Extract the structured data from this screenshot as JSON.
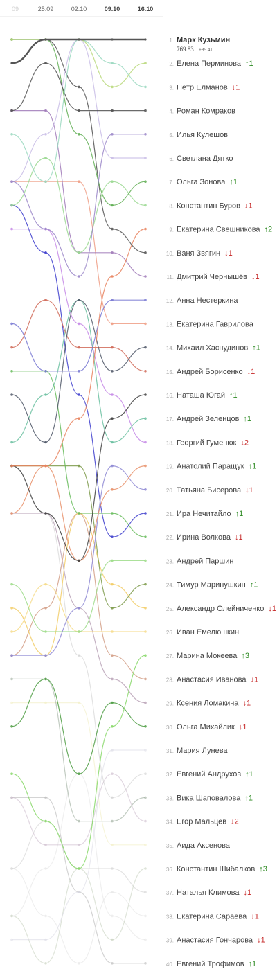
{
  "chart_data": {
    "type": "line",
    "dates": [
      "09",
      "25.09",
      "02.10",
      "09.10",
      "16.10"
    ],
    "leader": {
      "score": "769.83",
      "delta": "+85.41"
    },
    "rows": [
      {
        "rank": "1.",
        "name": "Марк Кузьмин",
        "change": "",
        "dir": "none",
        "color": "#555555"
      },
      {
        "rank": "2.",
        "name": "Елена Перминова",
        "change": "↑1",
        "dir": "up",
        "color": "#b9d87a"
      },
      {
        "rank": "3.",
        "name": "Пётр Елманов",
        "change": "↓1",
        "dir": "down",
        "color": "#9ad8c0"
      },
      {
        "rank": "4.",
        "name": "Роман Комраков",
        "change": "",
        "dir": "none",
        "color": "#505050"
      },
      {
        "rank": "5.",
        "name": "Илья Кулешов",
        "change": "",
        "dir": "none",
        "color": "#9a86c8"
      },
      {
        "rank": "6.",
        "name": "Светлана Дятко",
        "change": "",
        "dir": "none",
        "color": "#c9bde6"
      },
      {
        "rank": "7.",
        "name": "Ольга Зонова",
        "change": "↑1",
        "dir": "up",
        "color": "#5fae52"
      },
      {
        "rank": "8.",
        "name": "Константин Буров",
        "change": "↓1",
        "dir": "down",
        "color": "#9ad890"
      },
      {
        "rank": "9.",
        "name": "Екатерина Свешникова",
        "change": "↑2",
        "dir": "up",
        "color": "#e8825e"
      },
      {
        "rank": "10.",
        "name": "Ваня Звягин",
        "change": "↓1",
        "dir": "down",
        "color": "#505050"
      },
      {
        "rank": "11.",
        "name": "Дмитрий Чернышёв",
        "change": "↓1",
        "dir": "down",
        "color": "#a07ab8"
      },
      {
        "rank": "12.",
        "name": "Анна Нестеркина",
        "change": "",
        "dir": "none",
        "color": "#7878d2"
      },
      {
        "rank": "13.",
        "name": "Екатерина Гаврилова",
        "change": "",
        "dir": "none",
        "color": "#ee9e85"
      },
      {
        "rank": "14.",
        "name": "Михаил Хаснудинов",
        "change": "↑1",
        "dir": "up",
        "color": "#505868"
      },
      {
        "rank": "15.",
        "name": "Андрей Борисенко",
        "change": "↓1",
        "dir": "down",
        "color": "#d06a58"
      },
      {
        "rank": "16.",
        "name": "Наташа Югай",
        "change": "↑1",
        "dir": "up",
        "color": "#404040"
      },
      {
        "rank": "17.",
        "name": "Андрей Зеленцов",
        "change": "↑1",
        "dir": "up",
        "color": "#6ac0a0"
      },
      {
        "rank": "18.",
        "name": "Георгий Гуменюк",
        "change": "↓2",
        "dir": "down",
        "color": "#c68ae6"
      },
      {
        "rank": "19.",
        "name": "Анатолий Паращук",
        "change": "↑1",
        "dir": "up",
        "color": "#e8906a"
      },
      {
        "rank": "20.",
        "name": "Татьяна Бисерова",
        "change": "↓1",
        "dir": "down",
        "color": "#8e88d4"
      },
      {
        "rank": "21.",
        "name": "Ира Нечитайло",
        "change": "↑1",
        "dir": "up",
        "color": "#3c3ccc"
      },
      {
        "rank": "22.",
        "name": "Ирина Волкова",
        "change": "↓1",
        "dir": "down",
        "color": "#66bb5a"
      },
      {
        "rank": "23.",
        "name": "Андрей Паршин",
        "change": "",
        "dir": "none",
        "color": "#9edc8a"
      },
      {
        "rank": "24.",
        "name": "Тимур Маринушкин",
        "change": "↑1",
        "dir": "up",
        "color": "#7c9a4a"
      },
      {
        "rank": "25.",
        "name": "Александр Олейниченко",
        "change": "↓1",
        "dir": "down",
        "color": "#f2cc66"
      },
      {
        "rank": "26.",
        "name": "Иван Емелюшкин",
        "change": "",
        "dir": "none",
        "color": "#f6dc8c"
      },
      {
        "rank": "27.",
        "name": "Марина Мокеева",
        "change": "↑3",
        "dir": "up",
        "color": "#88d86a"
      },
      {
        "rank": "28.",
        "name": "Анастасия Иванова",
        "change": "↓1",
        "dir": "down",
        "color": "#d4a088"
      },
      {
        "rank": "29.",
        "name": "Ксения Ломакина",
        "change": "↓1",
        "dir": "down",
        "color": "#bba4b8"
      },
      {
        "rank": "30.",
        "name": "Ольга Михайлик",
        "change": "↓1",
        "dir": "down",
        "color": "#4f9e44"
      },
      {
        "rank": "31.",
        "name": "Мария Лунева",
        "change": "",
        "dir": "none",
        "color": "#dcdce6"
      },
      {
        "rank": "32.",
        "name": "Евгений Андрухов",
        "change": "↑1",
        "dir": "up",
        "color": "#cfcfcf"
      },
      {
        "rank": "33.",
        "name": "Вика Шаповалова",
        "change": "↑1",
        "dir": "up",
        "color": "#9aaa9a"
      },
      {
        "rank": "34.",
        "name": "Егор Мальцев",
        "change": "↓2",
        "dir": "down",
        "color": "#cdbdcd"
      },
      {
        "rank": "35.",
        "name": "Аида Аксенова",
        "change": "",
        "dir": "none",
        "color": "#f2eec4"
      },
      {
        "rank": "36.",
        "name": "Константин Шибалков",
        "change": "↑3",
        "dir": "up",
        "color": "#c8d2c0"
      },
      {
        "rank": "37.",
        "name": "Наталья Климова",
        "change": "↓1",
        "dir": "down",
        "color": "#d2d2d2"
      },
      {
        "rank": "38.",
        "name": "Екатерина Сараева",
        "change": "↓1",
        "dir": "down",
        "color": "#e4e4e4"
      },
      {
        "rank": "39.",
        "name": "Анастасия Гончарова",
        "change": "↓1",
        "dir": "down",
        "color": "#e4e4e4"
      },
      {
        "rank": "40.",
        "name": "Евгений Трофимов",
        "change": "↑1",
        "dir": "up",
        "color": "#b8b8b8"
      }
    ]
  }
}
